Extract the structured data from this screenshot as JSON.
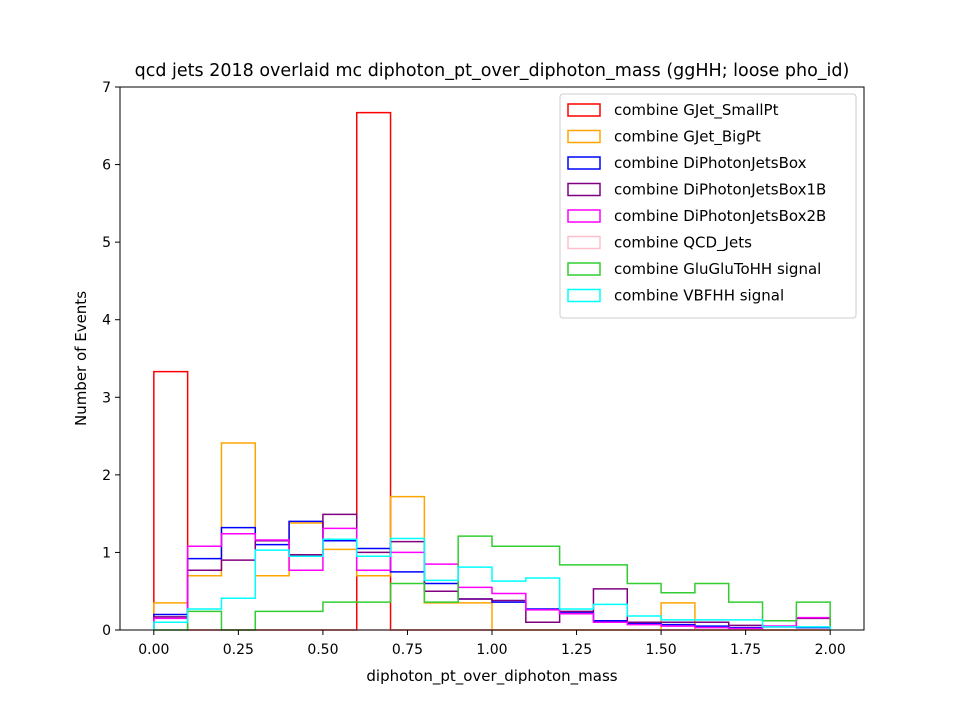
{
  "chart_data": {
    "type": "histogram-step",
    "title": "qcd jets 2018 overlaid mc diphoton_pt_over_diphoton_mass (ggHH; loose pho_id)",
    "xlabel": "diphoton_pt_over_diphoton_mass",
    "ylabel": "Number of Events",
    "xlim": [
      -0.1,
      2.1
    ],
    "ylim": [
      0,
      7
    ],
    "x_ticks": [
      "0.00",
      "0.25",
      "0.50",
      "0.75",
      "1.00",
      "1.25",
      "1.50",
      "1.75",
      "2.00"
    ],
    "y_ticks": [
      "0",
      "1",
      "2",
      "3",
      "4",
      "5",
      "6",
      "7"
    ],
    "bin_edges": [
      0.0,
      0.1,
      0.2,
      0.3,
      0.4,
      0.5,
      0.6,
      0.7,
      0.8,
      0.9,
      1.0,
      1.1,
      1.2,
      1.3,
      1.4,
      1.5,
      1.6,
      1.7,
      1.8,
      1.9,
      2.0
    ],
    "legend_position": "upper right",
    "series": [
      {
        "name": "combine GJet_SmallPt",
        "color": "#ff0000",
        "values": [
          3.33,
          0,
          0,
          0,
          0,
          0,
          6.67,
          0,
          0,
          0,
          0,
          0,
          0,
          0,
          0,
          0,
          0,
          0,
          0,
          0
        ]
      },
      {
        "name": "combine GJet_BigPt",
        "color": "#ffa500",
        "values": [
          0.35,
          0.7,
          2.41,
          0.7,
          1.38,
          1.04,
          0.7,
          1.72,
          0.35,
          0.35,
          0,
          0,
          0,
          0,
          0,
          0.35,
          0,
          0,
          0,
          0
        ]
      },
      {
        "name": "combine DiPhotonJetsBox",
        "color": "#0000ff",
        "values": [
          0.2,
          0.92,
          1.32,
          1.1,
          1.4,
          1.15,
          1.05,
          0.75,
          0.6,
          0.4,
          0.36,
          0.27,
          0.22,
          0.12,
          0.08,
          0.07,
          0.05,
          0.03,
          0.04,
          0.03
        ]
      },
      {
        "name": "combine DiPhotonJetsBox1B",
        "color": "#800080",
        "values": [
          0.17,
          0.77,
          0.9,
          1.15,
          0.97,
          1.49,
          1.0,
          1.14,
          0.5,
          0.4,
          0.38,
          0.1,
          0.24,
          0.53,
          0.1,
          0.1,
          0.1,
          0.06,
          0.05,
          0.15
        ]
      },
      {
        "name": "combine DiPhotonJetsBox2B",
        "color": "#ff00ff",
        "values": [
          0.15,
          1.08,
          1.24,
          1.16,
          0.77,
          1.31,
          0.77,
          1.0,
          0.85,
          0.55,
          0.47,
          0.26,
          0.21,
          0.1,
          0.07,
          0.05,
          0.03,
          0.02,
          0.05,
          0.16
        ]
      },
      {
        "name": "combine QCD_Jets",
        "color": "#ffc0cb",
        "values": [
          0,
          0,
          0,
          0,
          0,
          0,
          0,
          0,
          0,
          0,
          0,
          0,
          0,
          0,
          0,
          0,
          0,
          0,
          0,
          0
        ]
      },
      {
        "name": "combine GluGluToHH signal",
        "color": "#32cd32",
        "values": [
          0,
          0.24,
          0,
          0.24,
          0.24,
          0.36,
          0.36,
          0.6,
          0.36,
          1.21,
          1.08,
          1.08,
          0.84,
          0.84,
          0.6,
          0.48,
          0.6,
          0.36,
          0.12,
          0.36
        ]
      },
      {
        "name": "combine VBFHH signal",
        "color": "#00ffff",
        "values": [
          0.1,
          0.27,
          0.41,
          1.03,
          0.95,
          1.17,
          0.95,
          1.18,
          0.64,
          0.81,
          0.63,
          0.67,
          0.27,
          0.33,
          0.18,
          0.13,
          0.13,
          0.13,
          0.04,
          0.04
        ]
      }
    ]
  }
}
